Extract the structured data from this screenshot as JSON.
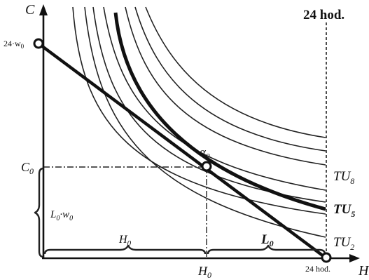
{
  "header": {
    "hours_label": "24 hod."
  },
  "axes": {
    "x_label": "H",
    "y_label": "C"
  },
  "labels": {
    "max_consumption": "24·w",
    "max_consumption_sub": "0",
    "c0": "C",
    "c0_sub": "0",
    "labor_income": "L",
    "labor_income_sub": "0",
    "labor_income_rest": "·w",
    "labor_income_sub2": "0",
    "h0_brace": "H",
    "h0_brace_sub": "0",
    "h0_axis": "H",
    "h0_axis_sub": "0",
    "l0": "L",
    "l0_sub": "0",
    "optimum": "α",
    "optimum_sub": "0",
    "x_end": "24 hod.",
    "tu8": "TU",
    "tu8_sub": "8",
    "tu5": "TU",
    "tu5_sub": "5",
    "tu2": "TU",
    "tu2_sub": "2"
  },
  "curves": {
    "count": 8,
    "highlighted": 5
  }
}
